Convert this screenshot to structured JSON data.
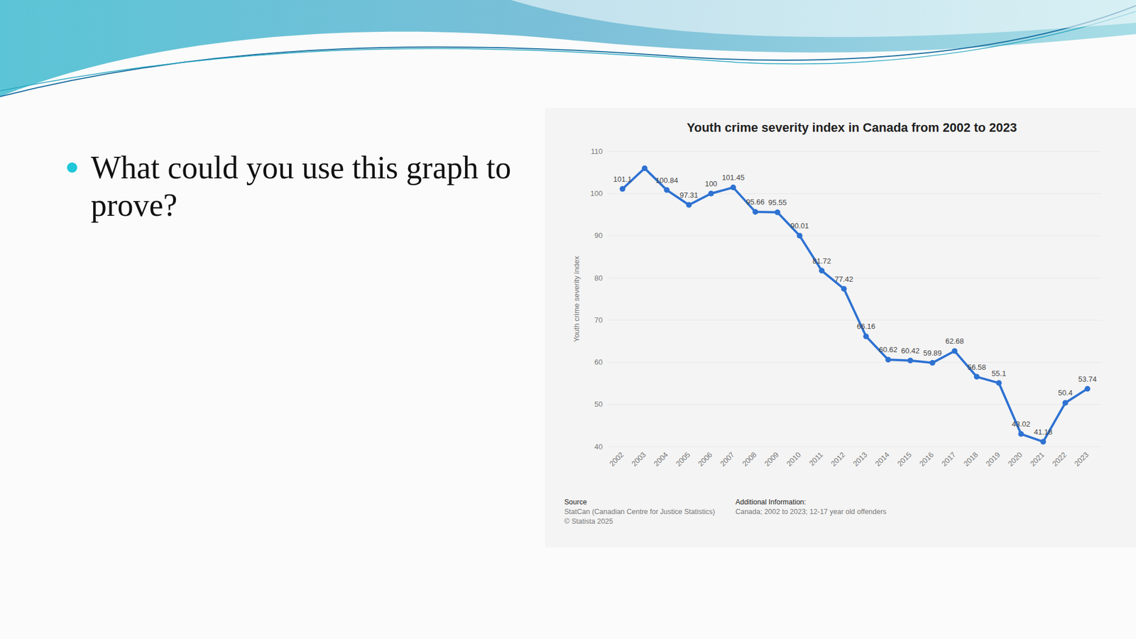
{
  "slide": {
    "bullet": "What could you use this graph to prove?"
  },
  "chart_data": {
    "type": "line",
    "title": "Youth crime severity index in Canada from 2002 to 2023",
    "ylabel": "Youth crime severity index",
    "categories": [
      "2002",
      "2003",
      "2004",
      "2005",
      "2006",
      "2007",
      "2008",
      "2009",
      "2010",
      "2011",
      "2012",
      "2013",
      "2014",
      "2015",
      "2016",
      "2017",
      "2018",
      "2019",
      "2020",
      "2021",
      "2022",
      "2023"
    ],
    "values": [
      101.1,
      106,
      100.84,
      97.31,
      100,
      101.45,
      95.66,
      95.55,
      90.01,
      81.72,
      77.42,
      66.16,
      60.62,
      60.42,
      59.89,
      62.68,
      56.58,
      55.1,
      43.02,
      41.18,
      50.4,
      53.74
    ],
    "value_labels": [
      "101.1",
      null,
      "100.84",
      "97.31",
      "100",
      "101.45",
      "95.66",
      "95.55",
      "90.01",
      "81.72",
      "77.42",
      "66.16",
      "60.62",
      "60.42",
      "59.89",
      "62.68",
      "56.58",
      "55.1",
      "43.02",
      "41.18",
      "50.4",
      "53.74"
    ],
    "color": "#2e72d2",
    "marker": "circle",
    "ylim": [
      40,
      110
    ],
    "yticks": [
      40,
      50,
      60,
      70,
      80,
      90,
      100,
      110
    ],
    "grid": true,
    "data_labels": true
  },
  "footer": {
    "source_heading": "Source",
    "source_lines": [
      "StatCan (Canadian Centre for Justice Statistics)",
      "© Statista 2025"
    ],
    "info_heading": "Additional Information:",
    "info_lines": [
      "Canada; 2002 to 2023; 12-17 year old offenders"
    ]
  }
}
